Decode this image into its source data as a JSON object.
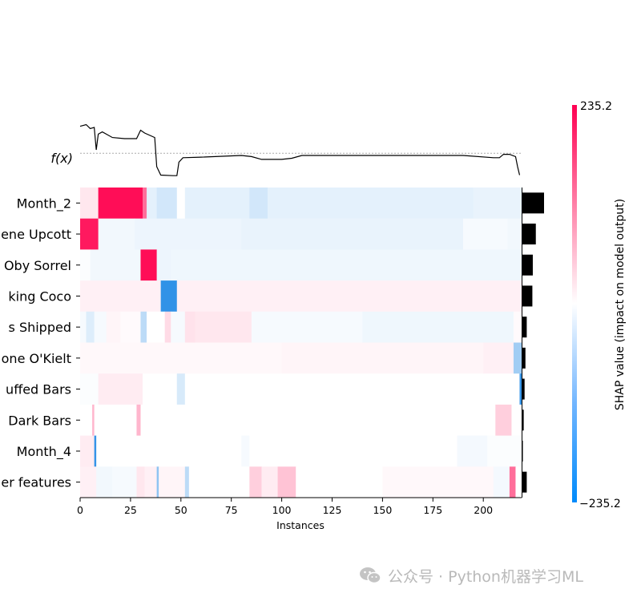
{
  "chart_data": {
    "type": "heatmap",
    "title": "",
    "xlabel": "Instances",
    "ylabel": "",
    "fx_label": "f(x)",
    "x_ticks": [
      0,
      25,
      50,
      75,
      100,
      125,
      150,
      175,
      200
    ],
    "xlim": [
      0,
      219
    ],
    "features": [
      "Month_2",
      "ene Upcott",
      "Oby Sorrel",
      "king Coco",
      "s Shipped",
      "one O'Kielt",
      "uffed Bars",
      "Dark Bars",
      "Month_4",
      "er features"
    ],
    "importance": [
      1.0,
      0.62,
      0.48,
      0.46,
      0.2,
      0.14,
      0.1,
      0.06,
      0.02,
      0.2
    ],
    "colorbar": {
      "label": "SHAP value (impact on model output)",
      "max_label": "235.2",
      "min_label": "−235.2",
      "vmin": -235.2,
      "vmax": 235.2,
      "positive_color": "#ff0d57",
      "negative_color": "#1e88e5"
    },
    "fx_curve": [
      [
        0,
        0.92
      ],
      [
        3,
        0.95
      ],
      [
        5,
        0.88
      ],
      [
        7,
        0.9
      ],
      [
        8,
        0.5
      ],
      [
        9,
        0.78
      ],
      [
        11,
        0.82
      ],
      [
        13,
        0.78
      ],
      [
        16,
        0.72
      ],
      [
        22,
        0.7
      ],
      [
        28,
        0.7
      ],
      [
        30,
        0.85
      ],
      [
        32,
        0.8
      ],
      [
        37,
        0.72
      ],
      [
        38,
        0.2
      ],
      [
        40,
        0.05
      ],
      [
        46,
        0.04
      ],
      [
        48,
        0.04
      ],
      [
        49,
        0.28
      ],
      [
        51,
        0.36
      ],
      [
        60,
        0.37
      ],
      [
        80,
        0.4
      ],
      [
        85,
        0.38
      ],
      [
        90,
        0.33
      ],
      [
        100,
        0.33
      ],
      [
        105,
        0.35
      ],
      [
        110,
        0.4
      ],
      [
        150,
        0.4
      ],
      [
        190,
        0.4
      ],
      [
        205,
        0.36
      ],
      [
        208,
        0.36
      ],
      [
        210,
        0.42
      ],
      [
        213,
        0.42
      ],
      [
        216,
        0.38
      ],
      [
        217,
        0.2
      ],
      [
        218,
        0.05
      ]
    ],
    "fx_baseline": 0.44,
    "rows": [
      [
        [
          0,
          9,
          0.1
        ],
        [
          9,
          31,
          1.0
        ],
        [
          31,
          33,
          0.6
        ],
        [
          33,
          38,
          -0.12
        ],
        [
          38,
          48,
          -0.2
        ],
        [
          48,
          52,
          0.0
        ],
        [
          52,
          84,
          -0.12
        ],
        [
          84,
          93,
          -0.2
        ],
        [
          93,
          195,
          -0.12
        ],
        [
          195,
          219,
          -0.1
        ]
      ],
      [
        [
          0,
          9,
          0.95
        ],
        [
          9,
          27,
          -0.06
        ],
        [
          27,
          80,
          -0.08
        ],
        [
          80,
          190,
          -0.1
        ],
        [
          190,
          212,
          -0.04
        ],
        [
          212,
          219,
          -0.06
        ]
      ],
      [
        [
          0,
          5,
          -0.02
        ],
        [
          5,
          30,
          -0.06
        ],
        [
          30,
          38,
          1.0
        ],
        [
          38,
          45,
          -0.08
        ],
        [
          45,
          219,
          -0.07
        ]
      ],
      [
        [
          0,
          40,
          0.06
        ],
        [
          40,
          48,
          -0.92
        ],
        [
          48,
          219,
          0.06
        ]
      ],
      [
        [
          0,
          3,
          -0.04
        ],
        [
          3,
          7,
          -0.15
        ],
        [
          7,
          13,
          -0.04
        ],
        [
          13,
          20,
          0.04
        ],
        [
          20,
          30,
          0.02
        ],
        [
          30,
          33,
          -0.3
        ],
        [
          33,
          42,
          0.0
        ],
        [
          42,
          45,
          0.15
        ],
        [
          45,
          52,
          -0.04
        ],
        [
          52,
          57,
          0.12
        ],
        [
          57,
          85,
          0.1
        ],
        [
          85,
          140,
          -0.04
        ],
        [
          140,
          215,
          -0.07
        ],
        [
          215,
          219,
          0.02
        ]
      ],
      [
        [
          0,
          100,
          0.03
        ],
        [
          100,
          200,
          0.04
        ],
        [
          200,
          215,
          0.06
        ],
        [
          215,
          219,
          -0.42
        ]
      ],
      [
        [
          0,
          9,
          -0.02
        ],
        [
          9,
          31,
          0.08
        ],
        [
          31,
          48,
          0.0
        ],
        [
          48,
          52,
          -0.18
        ],
        [
          52,
          218,
          0.0
        ],
        [
          218,
          219,
          -0.9
        ]
      ],
      [
        [
          0,
          6,
          0.0
        ],
        [
          6,
          7,
          0.3
        ],
        [
          7,
          28,
          0.0
        ],
        [
          28,
          30,
          0.3
        ],
        [
          30,
          206,
          0.0
        ],
        [
          206,
          214,
          0.2
        ],
        [
          214,
          219,
          0.0
        ]
      ],
      [
        [
          0,
          7,
          0.08
        ],
        [
          7,
          8,
          -0.9
        ],
        [
          8,
          80,
          0.0
        ],
        [
          80,
          84,
          -0.04
        ],
        [
          84,
          187,
          0.0
        ],
        [
          187,
          202,
          -0.05
        ],
        [
          202,
          219,
          -0.02
        ]
      ],
      [
        [
          0,
          8,
          0.06
        ],
        [
          8,
          16,
          -0.06
        ],
        [
          16,
          28,
          -0.04
        ],
        [
          28,
          32,
          0.1
        ],
        [
          32,
          38,
          0.06
        ],
        [
          38,
          39,
          -0.5
        ],
        [
          39,
          52,
          0.04
        ],
        [
          52,
          54,
          -0.3
        ],
        [
          54,
          84,
          0.0
        ],
        [
          84,
          90,
          0.2
        ],
        [
          90,
          98,
          0.08
        ],
        [
          98,
          107,
          0.25
        ],
        [
          107,
          150,
          0.0
        ],
        [
          150,
          205,
          0.03
        ],
        [
          205,
          213,
          -0.05
        ],
        [
          213,
          216,
          0.6
        ],
        [
          216,
          219,
          0.0
        ]
      ]
    ]
  },
  "watermark": {
    "text": "公众号 · Python机器学习ML"
  }
}
